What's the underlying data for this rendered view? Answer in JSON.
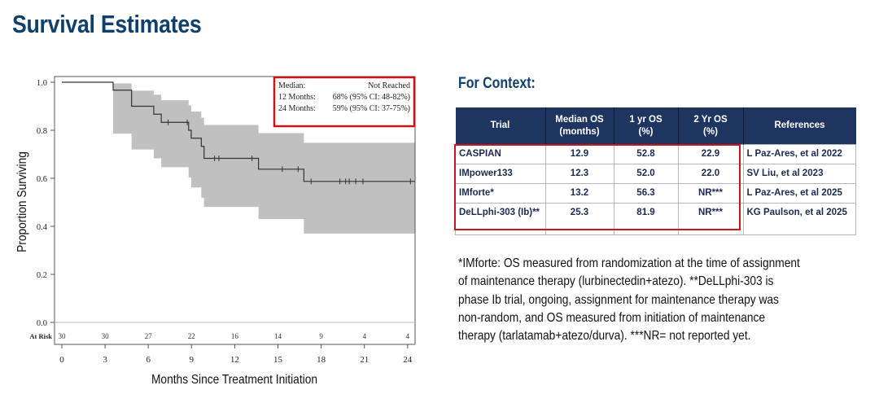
{
  "title": "Survival Estimates",
  "chart_data": {
    "type": "line",
    "subtype": "kaplan-meier",
    "xlabel": "Months Since Treatment Initiation",
    "ylabel": "Proportion Surviving",
    "xlim": [
      0,
      24.5
    ],
    "ylim": [
      0,
      1.0
    ],
    "xticks": [
      "0",
      "3",
      "6",
      "9",
      "12",
      "15",
      "18",
      "21",
      "24"
    ],
    "yticks": [
      "0.0",
      "0.2",
      "0.4",
      "0.6",
      "0.8",
      "1.0"
    ],
    "grid": false,
    "survival_steps": [
      [
        0,
        1.0
      ],
      [
        3.56,
        0.967
      ],
      [
        4.84,
        0.9
      ],
      [
        6.38,
        0.867
      ],
      [
        6.9,
        0.833
      ],
      [
        8.8,
        0.8
      ],
      [
        8.98,
        0.767
      ],
      [
        9.68,
        0.733
      ],
      [
        9.87,
        0.683
      ],
      [
        13.65,
        0.638
      ],
      [
        16.8,
        0.587
      ],
      [
        24.5,
        0.587
      ]
    ],
    "ci_steps": [
      {
        "x": 3.56,
        "upper": 0.995,
        "lower": 0.786
      },
      {
        "x": 4.84,
        "upper": 0.965,
        "lower": 0.72
      },
      {
        "x": 6.38,
        "upper": 0.948,
        "lower": 0.683
      },
      {
        "x": 6.9,
        "upper": 0.925,
        "lower": 0.646
      },
      {
        "x": 8.8,
        "upper": 0.903,
        "lower": 0.604
      },
      {
        "x": 8.98,
        "upper": 0.878,
        "lower": 0.562
      },
      {
        "x": 9.68,
        "upper": 0.852,
        "lower": 0.519
      },
      {
        "x": 9.87,
        "upper": 0.822,
        "lower": 0.481
      },
      {
        "x": 13.65,
        "upper": 0.788,
        "lower": 0.43
      },
      {
        "x": 16.8,
        "upper": 0.748,
        "lower": 0.37
      },
      {
        "x": 24.5,
        "upper": 0.748,
        "lower": 0.37
      }
    ],
    "censor_times": [
      7.38,
      8.7,
      10.6,
      10.9,
      13.2,
      15.3,
      16.4,
      17.3,
      19.3,
      19.7,
      19.95,
      20.4,
      20.9,
      24.2
    ],
    "at_risk_label": "At Risk",
    "at_risk": [
      30,
      30,
      27,
      22,
      16,
      14,
      9,
      4,
      4
    ],
    "legend": {
      "lines": [
        {
          "label": "Median:",
          "value": "Not Reached"
        },
        {
          "label": "12 Months:",
          "value": "68% (95% CI: 48-82%)"
        },
        {
          "label": "24 Months:",
          "value": "59% (95% CI: 37-75%)"
        }
      ],
      "placement": "top-right",
      "border_color": "#c8161d"
    },
    "colors": {
      "line": "#333333",
      "ci": "#c0c0c0"
    }
  },
  "context": {
    "heading": "For Context:",
    "headers": [
      [
        "Trial",
        ""
      ],
      [
        "Median OS",
        "(months)"
      ],
      [
        "1 yr OS",
        "(%)"
      ],
      [
        "2 Yr OS",
        "(%)"
      ],
      [
        "References",
        ""
      ]
    ],
    "rows": [
      {
        "trial": "CASPIAN",
        "median": "12.9",
        "yr1": "52.8",
        "yr2": "22.9",
        "ref": "L Paz-Ares, et al 2022"
      },
      {
        "trial": "IMpower133",
        "median": "12.3",
        "yr1": "52.0",
        "yr2": "22.0",
        "ref": "SV Liu, et al 2023"
      },
      {
        "trial": "IMforte*",
        "median": "13.2",
        "yr1": "56.3",
        "yr2": "NR***",
        "ref": "L Paz-Ares, et al 2025"
      },
      {
        "trial": "DeLLphi-303 (Ib)**",
        "median": "25.3",
        "yr1": "81.9",
        "yr2": "NR***",
        "ref": "KG Paulson, et al 2025"
      }
    ],
    "header_color": "#1e3560",
    "highlight_color": "#c8161d"
  },
  "footnote": [
    "*IMforte: OS measured from randomization at the time of assignment",
    "of maintenance therapy (lurbinectedin+atezo). **DeLLphi-303 is",
    "phase Ib trial, ongoing, assignment for maintenance therapy was",
    "non-random, and OS measured from initiation of maintenance",
    "therapy (tarlatamab+atezo/durva). ***NR= not reported yet."
  ]
}
